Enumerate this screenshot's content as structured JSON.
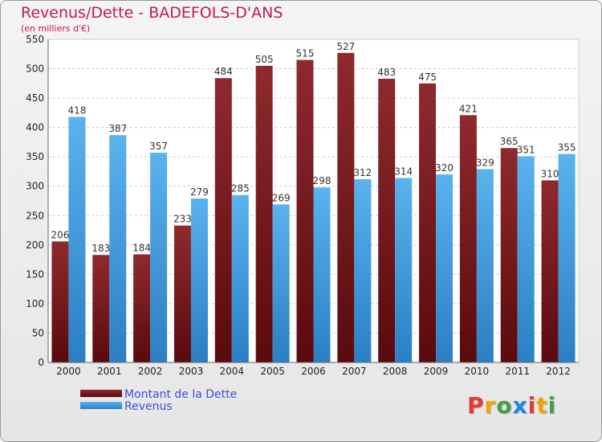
{
  "chart_data": {
    "type": "bar",
    "title": "Revenus/Dette - BADEFOLS-D'ANS",
    "subtitle": "(en milliers d'€)",
    "categories": [
      "2000",
      "2001",
      "2002",
      "2003",
      "2004",
      "2005",
      "2006",
      "2007",
      "2008",
      "2009",
      "2010",
      "2011",
      "2012"
    ],
    "series": [
      {
        "name": "Montant de la Dette",
        "color": "#7b1a1e",
        "values": [
          206,
          183,
          184,
          233,
          484,
          505,
          515,
          527,
          483,
          475,
          421,
          365,
          310
        ]
      },
      {
        "name": "Revenus",
        "color": "#3a9ee4",
        "values": [
          418,
          387,
          357,
          279,
          285,
          269,
          298,
          312,
          314,
          320,
          329,
          351,
          355
        ]
      }
    ],
    "ylim": [
      0,
      550
    ],
    "yticks": [
      0,
      50,
      100,
      150,
      200,
      250,
      300,
      350,
      400,
      450,
      500,
      550
    ],
    "grid": true,
    "legend_position": "bottom-left"
  },
  "logo": {
    "letters": [
      "P",
      "r",
      "o",
      "x",
      "i",
      "t",
      "i"
    ],
    "colors": [
      "#e53935",
      "#f4a300",
      "#43a047",
      "#1e88e5",
      "#e53935",
      "#f4a300",
      "#43a047"
    ]
  }
}
